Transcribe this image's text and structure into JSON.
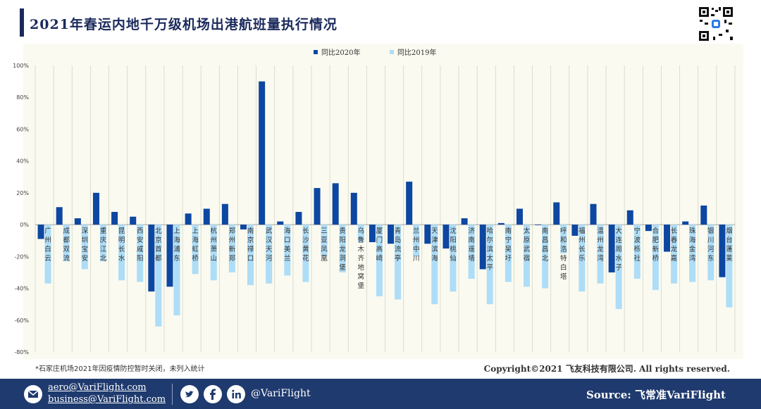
{
  "page": {
    "title": "2021年春运内地千万级机场出港航班量执行情况",
    "footnote": "*石家庄机场2021年因疫情防控暂时关闭，未列入统计",
    "copyright": "Copyright©2021 飞友科技有限公司. All rights reserved."
  },
  "footer": {
    "email1": "aero@VariFlight.com",
    "email2": "business@VariFlight.com",
    "handle": "@VariFlight",
    "source": "Source: 飞常准VariFlight",
    "icons": [
      "mail-icon",
      "twitter-icon",
      "facebook-icon",
      "linkedin-icon"
    ]
  },
  "chart_data": {
    "type": "bar",
    "legend_position": "top-center",
    "ylim": [
      -80,
      100
    ],
    "yticks": [
      "100%",
      "80%",
      "60%",
      "40%",
      "20%",
      "0%",
      "-20%",
      "-40%",
      "-60%",
      "-80%"
    ],
    "grid": true,
    "categories": [
      "广州白云",
      "成都双流",
      "深圳宝安",
      "重庆江北",
      "昆明长水",
      "西安咸阳",
      "北京首都",
      "上海浦东",
      "上海虹桥",
      "杭州萧山",
      "郑州新郑",
      "南京禄口",
      "武汉天河",
      "海口美兰",
      "长沙黄花",
      "三亚凤凰",
      "贵阳龙洞堡",
      "乌鲁木齐地窝堡",
      "厦门高崎",
      "青岛流亭",
      "兰州中川",
      "天津滨海",
      "沈阳桃仙",
      "济南遥墙",
      "哈尔滨太平",
      "南宁吴圩",
      "太原武宿",
      "南昌昌北",
      "呼和浩特白塔",
      "福州长乐",
      "温州龙湾",
      "大连周水子",
      "宁波栎社",
      "合肥新桥",
      "长春龙嘉",
      "珠海金湾",
      "银川河东",
      "烟台蓬莱"
    ],
    "series": [
      {
        "name": "同比2020年",
        "color": "#0d47a1",
        "values": [
          -9,
          11,
          4,
          20,
          8,
          5,
          -42,
          -39,
          7,
          10,
          13,
          -3,
          90,
          2,
          8,
          23,
          26,
          20,
          -11,
          -12,
          27,
          -12,
          -15,
          4,
          -28,
          1,
          10,
          0,
          14,
          -7,
          13,
          -30,
          9,
          -4,
          -17,
          2,
          12,
          -33
        ]
      },
      {
        "name": "同比2019年",
        "color": "#aeddf7",
        "values": [
          -37,
          -23,
          -28,
          -23,
          -35,
          -36,
          -64,
          -57,
          -31,
          -35,
          -30,
          -38,
          -37,
          -32,
          -36,
          -20,
          -30,
          -11,
          -45,
          -47,
          -20,
          -50,
          -42,
          -34,
          -50,
          -36,
          -39,
          -40,
          -18,
          -42,
          -37,
          -53,
          -34,
          -41,
          -37,
          -36,
          -35,
          -52
        ]
      }
    ]
  }
}
